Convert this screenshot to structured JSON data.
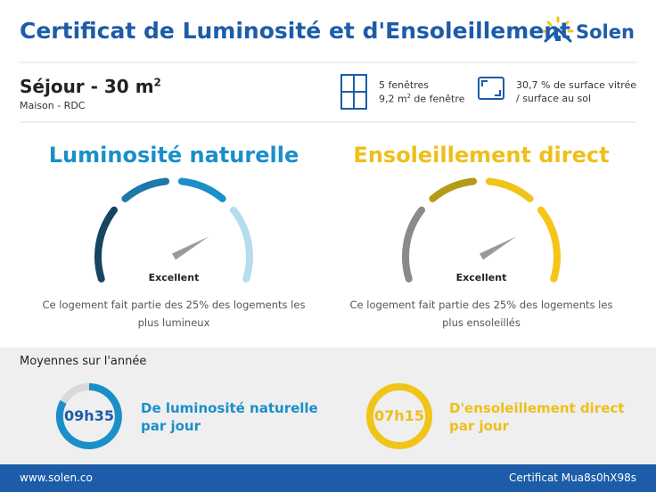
{
  "header": {
    "title": "Certificat de Luminosité et d'Ensoleillement",
    "logo": "Solen"
  },
  "room": {
    "name": "Séjour - 30 m",
    "name_sup": "2",
    "subtitle": "Maison - RDC"
  },
  "windows": {
    "count": "5 fenêtres",
    "area": "9,2 m",
    "area_sup": "2",
    "area_suffix": "de fenêtre"
  },
  "glazing": {
    "line1": "30,7 % de surface vitrée",
    "line2": "/ surface au sol"
  },
  "gauges": [
    {
      "title": "Luminosité naturelle",
      "rating": "Excellent",
      "description": "Ce logement fait partie des 25% des logements les plus lumineux"
    },
    {
      "title": "Ensoleillement direct",
      "rating": "Excellent",
      "description": "Ce logement fait partie des 25% des logements les plus ensoleillés"
    }
  ],
  "averages": {
    "title": "Moyennes sur l'année",
    "items": [
      {
        "time": "09h35",
        "label_line1": "De luminosité naturelle",
        "label_line2": "par jour"
      },
      {
        "time": "07h15",
        "label_line1": "D'ensoleillement direct",
        "label_line2": "par jour"
      }
    ]
  },
  "footer": {
    "website": "www.solen.co",
    "certificate": "Certificat Mua8s0hX98s"
  }
}
